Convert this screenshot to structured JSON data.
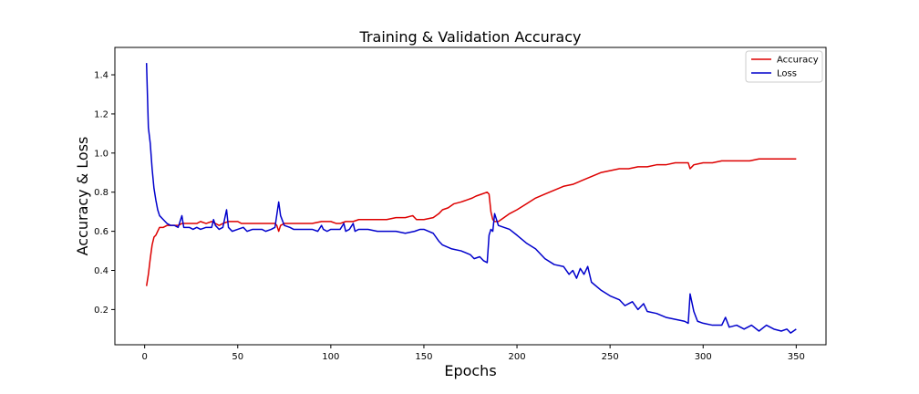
{
  "chart_data": {
    "type": "line",
    "title": "Training & Validation Accuracy",
    "xlabel": "Epochs",
    "ylabel": "Accuracy & Loss",
    "xlim": [
      -16,
      366
    ],
    "ylim": [
      0.02,
      1.54
    ],
    "xticks": [
      0,
      50,
      100,
      150,
      200,
      250,
      300,
      350
    ],
    "yticks": [
      0.2,
      0.4,
      0.6,
      0.8,
      1.0,
      1.2,
      1.4
    ],
    "xtick_labels": [
      "0",
      "50",
      "100",
      "150",
      "200",
      "250",
      "300",
      "350"
    ],
    "ytick_labels": [
      "0.2",
      "0.4",
      "0.6",
      "0.8",
      "1.0",
      "1.2",
      "1.4"
    ],
    "grid": false,
    "legend_position": "top-right",
    "series": [
      {
        "name": "Accuracy",
        "color": "#dd0000",
        "points": [
          [
            1,
            0.32
          ],
          [
            2,
            0.38
          ],
          [
            3,
            0.46
          ],
          [
            4,
            0.53
          ],
          [
            5,
            0.57
          ],
          [
            6,
            0.58
          ],
          [
            7,
            0.6
          ],
          [
            8,
            0.62
          ],
          [
            10,
            0.62
          ],
          [
            12,
            0.63
          ],
          [
            15,
            0.63
          ],
          [
            18,
            0.63
          ],
          [
            20,
            0.64
          ],
          [
            22,
            0.64
          ],
          [
            25,
            0.64
          ],
          [
            28,
            0.64
          ],
          [
            30,
            0.65
          ],
          [
            33,
            0.64
          ],
          [
            36,
            0.65
          ],
          [
            38,
            0.64
          ],
          [
            40,
            0.63
          ],
          [
            42,
            0.64
          ],
          [
            45,
            0.65
          ],
          [
            48,
            0.65
          ],
          [
            50,
            0.65
          ],
          [
            52,
            0.64
          ],
          [
            55,
            0.64
          ],
          [
            58,
            0.64
          ],
          [
            60,
            0.64
          ],
          [
            62,
            0.64
          ],
          [
            65,
            0.64
          ],
          [
            68,
            0.64
          ],
          [
            70,
            0.64
          ],
          [
            71,
            0.63
          ],
          [
            72,
            0.6
          ],
          [
            73,
            0.63
          ],
          [
            75,
            0.64
          ],
          [
            78,
            0.64
          ],
          [
            80,
            0.64
          ],
          [
            85,
            0.64
          ],
          [
            90,
            0.64
          ],
          [
            95,
            0.65
          ],
          [
            100,
            0.65
          ],
          [
            103,
            0.64
          ],
          [
            105,
            0.64
          ],
          [
            108,
            0.65
          ],
          [
            110,
            0.65
          ],
          [
            112,
            0.65
          ],
          [
            115,
            0.66
          ],
          [
            118,
            0.66
          ],
          [
            120,
            0.66
          ],
          [
            125,
            0.66
          ],
          [
            130,
            0.66
          ],
          [
            135,
            0.67
          ],
          [
            140,
            0.67
          ],
          [
            144,
            0.68
          ],
          [
            146,
            0.66
          ],
          [
            150,
            0.66
          ],
          [
            155,
            0.67
          ],
          [
            158,
            0.69
          ],
          [
            160,
            0.71
          ],
          [
            163,
            0.72
          ],
          [
            166,
            0.74
          ],
          [
            170,
            0.75
          ],
          [
            173,
            0.76
          ],
          [
            176,
            0.77
          ],
          [
            178,
            0.78
          ],
          [
            181,
            0.79
          ],
          [
            184,
            0.8
          ],
          [
            185,
            0.79
          ],
          [
            186,
            0.7
          ],
          [
            187,
            0.66
          ],
          [
            188,
            0.65
          ],
          [
            190,
            0.65
          ],
          [
            193,
            0.67
          ],
          [
            196,
            0.69
          ],
          [
            200,
            0.71
          ],
          [
            205,
            0.74
          ],
          [
            210,
            0.77
          ],
          [
            215,
            0.79
          ],
          [
            220,
            0.81
          ],
          [
            225,
            0.83
          ],
          [
            230,
            0.84
          ],
          [
            235,
            0.86
          ],
          [
            240,
            0.88
          ],
          [
            245,
            0.9
          ],
          [
            250,
            0.91
          ],
          [
            255,
            0.92
          ],
          [
            260,
            0.92
          ],
          [
            265,
            0.93
          ],
          [
            270,
            0.93
          ],
          [
            275,
            0.94
          ],
          [
            280,
            0.94
          ],
          [
            285,
            0.95
          ],
          [
            290,
            0.95
          ],
          [
            292,
            0.95
          ],
          [
            293,
            0.92
          ],
          [
            295,
            0.94
          ],
          [
            300,
            0.95
          ],
          [
            305,
            0.95
          ],
          [
            310,
            0.96
          ],
          [
            315,
            0.96
          ],
          [
            320,
            0.96
          ],
          [
            325,
            0.96
          ],
          [
            330,
            0.97
          ],
          [
            335,
            0.97
          ],
          [
            340,
            0.97
          ],
          [
            345,
            0.97
          ],
          [
            350,
            0.97
          ]
        ]
      },
      {
        "name": "Loss",
        "color": "#0000cc",
        "points": [
          [
            1,
            1.46
          ],
          [
            2,
            1.13
          ],
          [
            3,
            1.05
          ],
          [
            4,
            0.92
          ],
          [
            5,
            0.82
          ],
          [
            6,
            0.76
          ],
          [
            7,
            0.71
          ],
          [
            8,
            0.68
          ],
          [
            10,
            0.66
          ],
          [
            12,
            0.64
          ],
          [
            14,
            0.63
          ],
          [
            16,
            0.63
          ],
          [
            18,
            0.62
          ],
          [
            20,
            0.68
          ],
          [
            21,
            0.62
          ],
          [
            24,
            0.62
          ],
          [
            26,
            0.61
          ],
          [
            28,
            0.62
          ],
          [
            30,
            0.61
          ],
          [
            33,
            0.62
          ],
          [
            36,
            0.62
          ],
          [
            37,
            0.66
          ],
          [
            38,
            0.63
          ],
          [
            40,
            0.61
          ],
          [
            42,
            0.62
          ],
          [
            44,
            0.71
          ],
          [
            45,
            0.62
          ],
          [
            47,
            0.6
          ],
          [
            50,
            0.61
          ],
          [
            53,
            0.62
          ],
          [
            55,
            0.6
          ],
          [
            58,
            0.61
          ],
          [
            60,
            0.61
          ],
          [
            63,
            0.61
          ],
          [
            65,
            0.6
          ],
          [
            68,
            0.61
          ],
          [
            70,
            0.62
          ],
          [
            72,
            0.75
          ],
          [
            73,
            0.68
          ],
          [
            75,
            0.63
          ],
          [
            78,
            0.62
          ],
          [
            80,
            0.61
          ],
          [
            85,
            0.61
          ],
          [
            90,
            0.61
          ],
          [
            93,
            0.6
          ],
          [
            95,
            0.63
          ],
          [
            96,
            0.61
          ],
          [
            98,
            0.6
          ],
          [
            100,
            0.61
          ],
          [
            103,
            0.61
          ],
          [
            105,
            0.61
          ],
          [
            107,
            0.64
          ],
          [
            108,
            0.6
          ],
          [
            110,
            0.61
          ],
          [
            112,
            0.64
          ],
          [
            113,
            0.6
          ],
          [
            115,
            0.61
          ],
          [
            120,
            0.61
          ],
          [
            125,
            0.6
          ],
          [
            130,
            0.6
          ],
          [
            135,
            0.6
          ],
          [
            140,
            0.59
          ],
          [
            145,
            0.6
          ],
          [
            148,
            0.61
          ],
          [
            150,
            0.61
          ],
          [
            155,
            0.59
          ],
          [
            158,
            0.55
          ],
          [
            160,
            0.53
          ],
          [
            165,
            0.51
          ],
          [
            170,
            0.5
          ],
          [
            175,
            0.48
          ],
          [
            177,
            0.46
          ],
          [
            180,
            0.47
          ],
          [
            182,
            0.45
          ],
          [
            184,
            0.44
          ],
          [
            185,
            0.58
          ],
          [
            186,
            0.61
          ],
          [
            187,
            0.6
          ],
          [
            188,
            0.69
          ],
          [
            190,
            0.63
          ],
          [
            193,
            0.62
          ],
          [
            196,
            0.61
          ],
          [
            200,
            0.58
          ],
          [
            205,
            0.54
          ],
          [
            210,
            0.51
          ],
          [
            215,
            0.46
          ],
          [
            220,
            0.43
          ],
          [
            225,
            0.42
          ],
          [
            228,
            0.38
          ],
          [
            230,
            0.4
          ],
          [
            232,
            0.36
          ],
          [
            234,
            0.41
          ],
          [
            236,
            0.38
          ],
          [
            238,
            0.42
          ],
          [
            240,
            0.34
          ],
          [
            245,
            0.3
          ],
          [
            250,
            0.27
          ],
          [
            255,
            0.25
          ],
          [
            258,
            0.22
          ],
          [
            260,
            0.23
          ],
          [
            262,
            0.24
          ],
          [
            265,
            0.2
          ],
          [
            268,
            0.23
          ],
          [
            270,
            0.19
          ],
          [
            275,
            0.18
          ],
          [
            280,
            0.16
          ],
          [
            285,
            0.15
          ],
          [
            290,
            0.14
          ],
          [
            292,
            0.13
          ],
          [
            293,
            0.28
          ],
          [
            295,
            0.19
          ],
          [
            297,
            0.14
          ],
          [
            300,
            0.13
          ],
          [
            305,
            0.12
          ],
          [
            310,
            0.12
          ],
          [
            312,
            0.16
          ],
          [
            314,
            0.11
          ],
          [
            318,
            0.12
          ],
          [
            322,
            0.1
          ],
          [
            326,
            0.12
          ],
          [
            330,
            0.09
          ],
          [
            334,
            0.12
          ],
          [
            338,
            0.1
          ],
          [
            342,
            0.09
          ],
          [
            345,
            0.1
          ],
          [
            347,
            0.08
          ],
          [
            350,
            0.1
          ]
        ]
      }
    ]
  }
}
